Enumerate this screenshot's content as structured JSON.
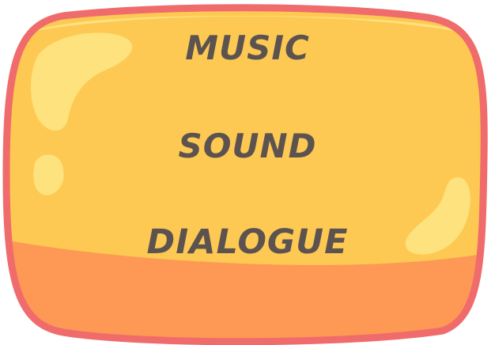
{
  "menu": {
    "items": [
      {
        "label": "MUSIC"
      },
      {
        "label": "SOUND"
      },
      {
        "label": "DIALOGUE"
      }
    ]
  },
  "colors": {
    "border": "#f06b6b",
    "panel_fill": "#fdc953",
    "panel_shadow": "#fe9955",
    "highlight": "#fde27e",
    "text": "#5c5350"
  }
}
